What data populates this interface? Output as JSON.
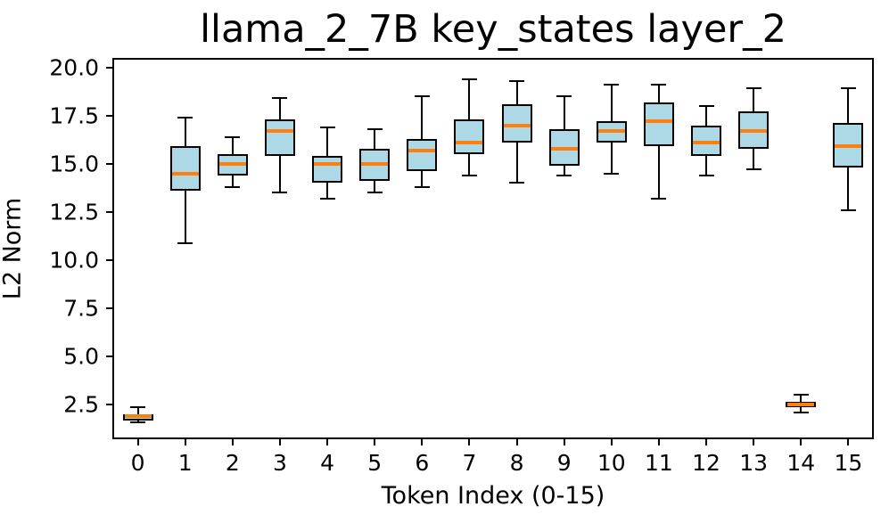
{
  "chart_data": {
    "type": "boxplot",
    "title": "llama_2_7B key_states layer_2",
    "xlabel": "Token Index (0-15)",
    "ylabel": "L2 Norm",
    "ylim": [
      0.8,
      20.4
    ],
    "yticks": [
      "2.5",
      "5.0",
      "7.5",
      "10.0",
      "12.5",
      "15.0",
      "17.5",
      "20.0"
    ],
    "categories": [
      "0",
      "1",
      "2",
      "3",
      "4",
      "5",
      "6",
      "7",
      "8",
      "9",
      "10",
      "11",
      "12",
      "13",
      "14",
      "15"
    ],
    "legend": null,
    "grid": false,
    "colors": {
      "box_fill": "#ADD8E6",
      "box_edge": "#000000",
      "median": "#FF7F0E",
      "whisker": "#000000",
      "background": "#FFFFFF"
    },
    "boxes": [
      {
        "token": "0",
        "whisker_low": 1.6,
        "q1": 1.7,
        "median": 1.9,
        "q3": 2.0,
        "whisker_high": 2.35
      },
      {
        "token": "1",
        "whisker_low": 10.9,
        "q1": 13.6,
        "median": 14.5,
        "q3": 15.9,
        "whisker_high": 17.4
      },
      {
        "token": "2",
        "whisker_low": 13.8,
        "q1": 14.4,
        "median": 15.0,
        "q3": 15.5,
        "whisker_high": 16.4
      },
      {
        "token": "3",
        "whisker_low": 13.5,
        "q1": 15.4,
        "median": 16.7,
        "q3": 17.3,
        "whisker_high": 18.4
      },
      {
        "token": "4",
        "whisker_low": 13.2,
        "q1": 14.0,
        "median": 15.0,
        "q3": 15.4,
        "whisker_high": 16.9
      },
      {
        "token": "5",
        "whisker_low": 13.5,
        "q1": 14.1,
        "median": 15.0,
        "q3": 15.8,
        "whisker_high": 16.8
      },
      {
        "token": "6",
        "whisker_low": 13.8,
        "q1": 14.6,
        "median": 15.7,
        "q3": 16.3,
        "whisker_high": 18.5
      },
      {
        "token": "7",
        "whisker_low": 14.4,
        "q1": 15.5,
        "median": 16.1,
        "q3": 17.3,
        "whisker_high": 19.4
      },
      {
        "token": "8",
        "whisker_low": 14.0,
        "q1": 16.1,
        "median": 17.0,
        "q3": 18.1,
        "whisker_high": 19.3
      },
      {
        "token": "9",
        "whisker_low": 14.4,
        "q1": 14.9,
        "median": 15.8,
        "q3": 16.8,
        "whisker_high": 18.5
      },
      {
        "token": "10",
        "whisker_low": 14.5,
        "q1": 16.1,
        "median": 16.7,
        "q3": 17.2,
        "whisker_high": 19.1
      },
      {
        "token": "11",
        "whisker_low": 13.2,
        "q1": 15.9,
        "median": 17.2,
        "q3": 18.2,
        "whisker_high": 19.1
      },
      {
        "token": "12",
        "whisker_low": 14.4,
        "q1": 15.4,
        "median": 16.1,
        "q3": 17.0,
        "whisker_high": 18.0
      },
      {
        "token": "13",
        "whisker_low": 14.7,
        "q1": 15.8,
        "median": 16.7,
        "q3": 17.7,
        "whisker_high": 18.9
      },
      {
        "token": "14",
        "whisker_low": 2.1,
        "q1": 2.35,
        "median": 2.5,
        "q3": 2.65,
        "whisker_high": 3.0
      },
      {
        "token": "15",
        "whisker_low": 12.6,
        "q1": 14.8,
        "median": 15.9,
        "q3": 17.1,
        "whisker_high": 18.9
      }
    ]
  }
}
